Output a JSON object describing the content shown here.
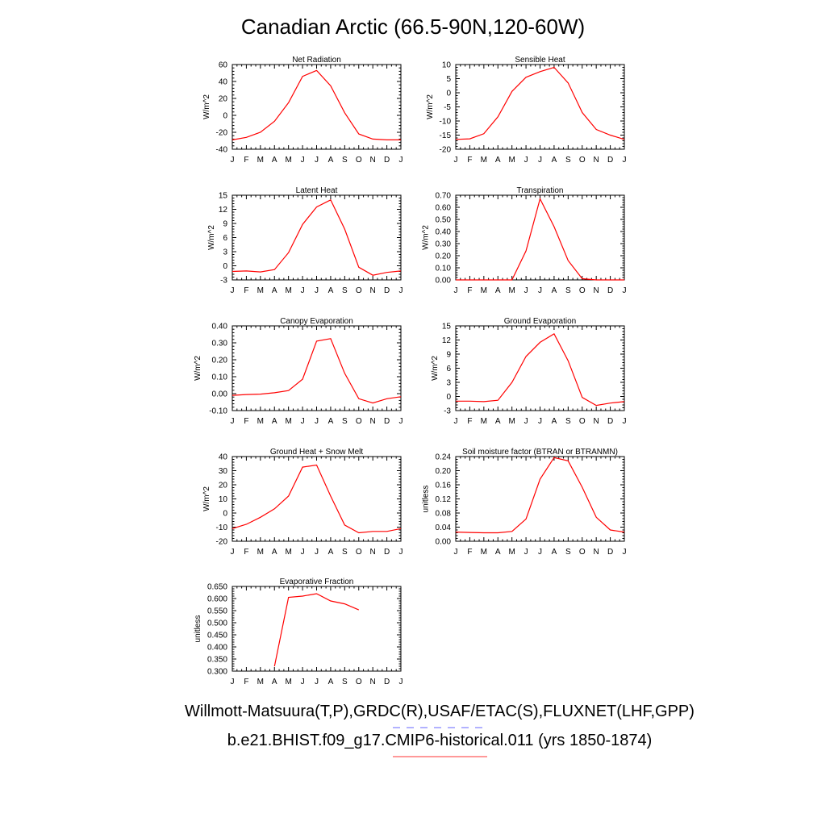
{
  "page": {
    "title": "Canadian Arctic (66.5-90N,120-60W)",
    "legend": [
      {
        "text": "Willmott-Matsuura(T,P),GRDC(R),USAF/ETAC(S),FLUXNET(LHF,GPP)",
        "color": "#6666ff",
        "dash": "dashed"
      },
      {
        "text": "b.e21.BHIST.f09_g17.CMIP6-historical.011 (yrs 1850-1874)",
        "color": "#ff3333",
        "dash": "solid"
      }
    ]
  },
  "chart_data": [
    {
      "type": "line",
      "title": "Net Radiation",
      "ylabel": "W/m^2",
      "categories": [
        "J",
        "F",
        "M",
        "A",
        "M",
        "J",
        "J",
        "A",
        "S",
        "O",
        "N",
        "D",
        "J"
      ],
      "ylim": [
        -40,
        60
      ],
      "yticks": [
        "-40",
        "-20",
        "0",
        "20",
        "40",
        "60"
      ],
      "series": [
        {
          "color": "#ff0000",
          "values": [
            -29,
            -26,
            -20,
            -7,
            15,
            46,
            53,
            35,
            3,
            -22,
            -28,
            -29,
            -29
          ]
        }
      ]
    },
    {
      "type": "line",
      "title": "Sensible Heat",
      "ylabel": "W/m^2",
      "categories": [
        "J",
        "F",
        "M",
        "A",
        "M",
        "J",
        "J",
        "A",
        "S",
        "O",
        "N",
        "D",
        "J"
      ],
      "ylim": [
        -20,
        10
      ],
      "yticks": [
        "-20",
        "-15",
        "-10",
        "-5",
        "0",
        "5",
        "10"
      ],
      "series": [
        {
          "color": "#ff0000",
          "values": [
            -16.5,
            -16.3,
            -14.5,
            -8.5,
            0.5,
            5.5,
            7.5,
            9,
            3.5,
            -7,
            -13,
            -15,
            -16.5
          ]
        }
      ]
    },
    {
      "type": "line",
      "title": "Latent Heat",
      "ylabel": "W/m^2",
      "categories": [
        "J",
        "F",
        "M",
        "A",
        "M",
        "J",
        "J",
        "A",
        "S",
        "O",
        "N",
        "D",
        "J"
      ],
      "ylim": [
        -3,
        15
      ],
      "yticks": [
        "-3",
        "0",
        "3",
        "6",
        "9",
        "12",
        "15"
      ],
      "series": [
        {
          "color": "#ff0000",
          "values": [
            -1.2,
            -1.1,
            -1.3,
            -0.8,
            2.8,
            8.8,
            12.5,
            14,
            7.8,
            -0.3,
            -2,
            -1.4,
            -1.1
          ]
        }
      ]
    },
    {
      "type": "line",
      "title": "Transpiration",
      "ylabel": "W/m^2",
      "categories": [
        "J",
        "F",
        "M",
        "A",
        "M",
        "J",
        "J",
        "A",
        "S",
        "O",
        "N",
        "D",
        "J"
      ],
      "ylim": [
        0,
        0.7
      ],
      "yticks": [
        "0.00",
        "0.10",
        "0.20",
        "0.30",
        "0.40",
        "0.50",
        "0.60",
        "0.70"
      ],
      "series": [
        {
          "color": "#ff0000",
          "values": [
            0,
            0,
            0,
            0,
            0,
            0.24,
            0.67,
            0.44,
            0.16,
            0.01,
            0,
            0,
            0
          ]
        }
      ]
    },
    {
      "type": "line",
      "title": "Canopy Evaporation",
      "ylabel": "W/m^2",
      "categories": [
        "J",
        "F",
        "M",
        "A",
        "M",
        "J",
        "J",
        "A",
        "S",
        "O",
        "N",
        "D",
        "J"
      ],
      "ylim": [
        -0.1,
        0.4
      ],
      "yticks": [
        "-0.10",
        "0.00",
        "0.10",
        "0.20",
        "0.30",
        "0.40"
      ],
      "series": [
        {
          "color": "#ff0000",
          "values": [
            -0.01,
            -0.005,
            -0.003,
            0.005,
            0.018,
            0.085,
            0.31,
            0.325,
            0.12,
            -0.03,
            -0.055,
            -0.03,
            -0.018
          ]
        }
      ]
    },
    {
      "type": "line",
      "title": "Ground Evaporation",
      "ylabel": "W/m^2",
      "categories": [
        "J",
        "F",
        "M",
        "A",
        "M",
        "J",
        "J",
        "A",
        "S",
        "O",
        "N",
        "D",
        "J"
      ],
      "ylim": [
        -3,
        15
      ],
      "yticks": [
        "-3",
        "0",
        "3",
        "6",
        "9",
        "12",
        "15"
      ],
      "series": [
        {
          "color": "#ff0000",
          "values": [
            -1,
            -1,
            -1.1,
            -0.8,
            3,
            8.5,
            11.5,
            13.3,
            7.6,
            -0.2,
            -1.9,
            -1.4,
            -1.1
          ]
        }
      ]
    },
    {
      "type": "line",
      "title": "Ground Heat + Snow Melt",
      "ylabel": "W/m^2",
      "categories": [
        "J",
        "F",
        "M",
        "A",
        "M",
        "J",
        "J",
        "A",
        "S",
        "O",
        "N",
        "D",
        "J"
      ],
      "ylim": [
        -20,
        40
      ],
      "yticks": [
        "-20",
        "-10",
        "0",
        "10",
        "20",
        "30",
        "40"
      ],
      "series": [
        {
          "color": "#ff0000",
          "values": [
            -11,
            -8,
            -3,
            3,
            12,
            32.5,
            34,
            12,
            -8.5,
            -14,
            -13,
            -13,
            -11
          ]
        }
      ]
    },
    {
      "type": "line",
      "title": "Soil moisture factor (BTRAN or BTRANMN)",
      "ylabel": "unitless",
      "categories": [
        "J",
        "F",
        "M",
        "A",
        "M",
        "J",
        "J",
        "A",
        "S",
        "O",
        "N",
        "D",
        "J"
      ],
      "ylim": [
        0,
        0.24
      ],
      "yticks": [
        "0.00",
        "0.04",
        "0.08",
        "0.12",
        "0.16",
        "0.20",
        "0.24"
      ],
      "series": [
        {
          "color": "#ff0000",
          "values": [
            0.026,
            0.025,
            0.024,
            0.024,
            0.028,
            0.063,
            0.176,
            0.237,
            0.228,
            0.153,
            0.068,
            0.032,
            0.026
          ]
        }
      ]
    },
    {
      "type": "line",
      "title": "Evaporative Fraction",
      "ylabel": "unitless",
      "categories": [
        "J",
        "F",
        "M",
        "A",
        "M",
        "J",
        "J",
        "A",
        "S",
        "O",
        "N",
        "D",
        "J"
      ],
      "ylim": [
        0.3,
        0.65
      ],
      "yticks": [
        "0.300",
        "0.350",
        "0.400",
        "0.450",
        "0.500",
        "0.550",
        "0.600",
        "0.650"
      ],
      "series": [
        {
          "color": "#ff0000",
          "values": [
            null,
            null,
            null,
            0.32,
            0.605,
            0.61,
            0.62,
            0.59,
            0.578,
            0.553,
            null,
            null,
            null
          ]
        }
      ]
    }
  ]
}
